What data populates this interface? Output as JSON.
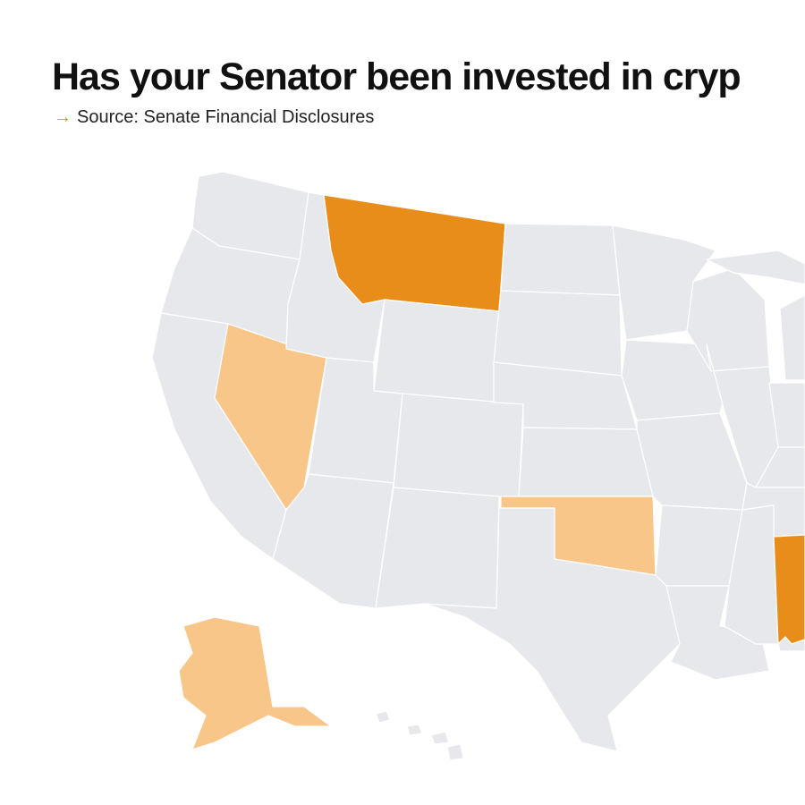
{
  "title": "Has your Senator been invested in cryp",
  "source": {
    "arrow": "→",
    "text": "Source: Senate Financial Disclosures"
  },
  "colors": {
    "invested_strong": "#E98D1A",
    "invested_light": "#F9C68A",
    "none": "#E6E8EB",
    "border": "#FFFFFF"
  },
  "states": [
    {
      "name": "Washington",
      "status": "none"
    },
    {
      "name": "Oregon",
      "status": "none"
    },
    {
      "name": "California",
      "status": "none"
    },
    {
      "name": "Nevada",
      "status": "invested_light"
    },
    {
      "name": "Idaho",
      "status": "none"
    },
    {
      "name": "Montana",
      "status": "invested_strong"
    },
    {
      "name": "Wyoming",
      "status": "none"
    },
    {
      "name": "Utah",
      "status": "none"
    },
    {
      "name": "Arizona",
      "status": "none"
    },
    {
      "name": "Colorado",
      "status": "none"
    },
    {
      "name": "New Mexico",
      "status": "none"
    },
    {
      "name": "North Dakota",
      "status": "none"
    },
    {
      "name": "South Dakota",
      "status": "none"
    },
    {
      "name": "Nebraska",
      "status": "none"
    },
    {
      "name": "Kansas",
      "status": "none"
    },
    {
      "name": "Oklahoma",
      "status": "invested_light"
    },
    {
      "name": "Texas",
      "status": "none"
    },
    {
      "name": "Minnesota",
      "status": "none"
    },
    {
      "name": "Iowa",
      "status": "none"
    },
    {
      "name": "Missouri",
      "status": "none"
    },
    {
      "name": "Arkansas",
      "status": "none"
    },
    {
      "name": "Louisiana",
      "status": "none"
    },
    {
      "name": "Wisconsin",
      "status": "none"
    },
    {
      "name": "Illinois",
      "status": "none"
    },
    {
      "name": "Michigan",
      "status": "none"
    },
    {
      "name": "Indiana",
      "status": "none"
    },
    {
      "name": "Kentucky",
      "status": "none"
    },
    {
      "name": "Tennessee",
      "status": "none"
    },
    {
      "name": "Mississippi",
      "status": "none"
    },
    {
      "name": "Alabama",
      "status": "invested_strong"
    },
    {
      "name": "Florida",
      "status": "none"
    },
    {
      "name": "Alaska",
      "status": "invested_light"
    },
    {
      "name": "Hawaii",
      "status": "none"
    }
  ]
}
